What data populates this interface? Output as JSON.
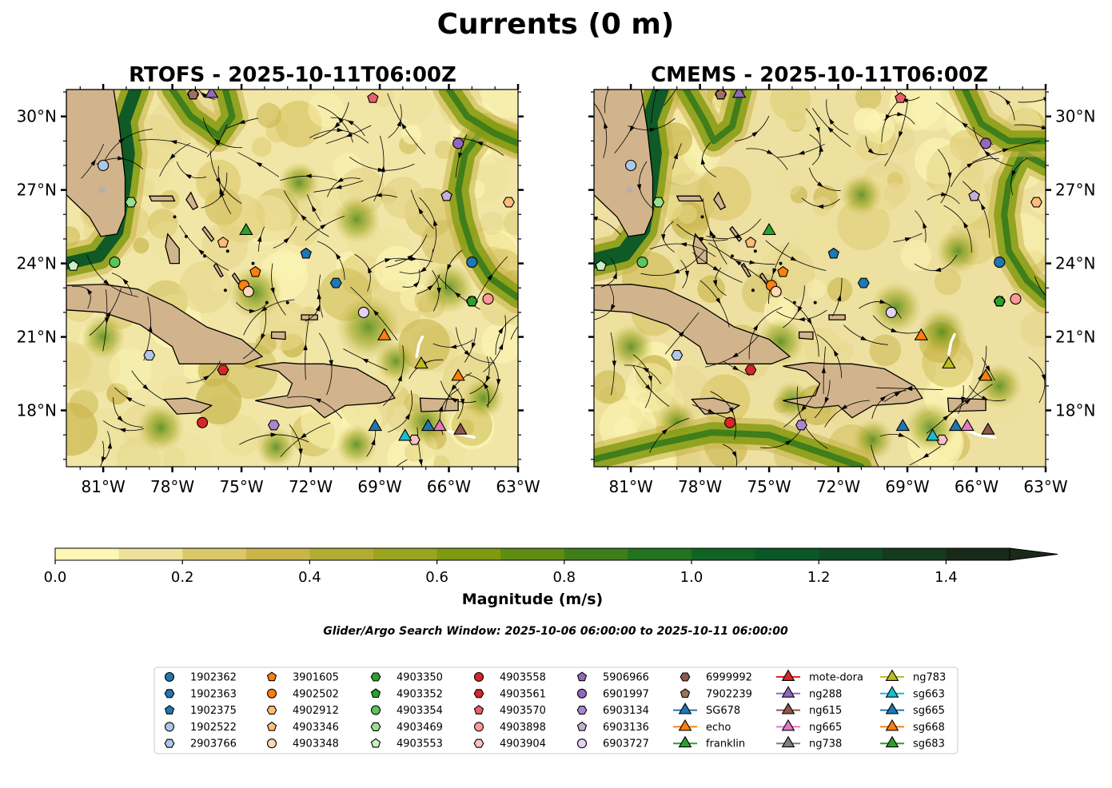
{
  "figure": {
    "title": "Currents (0 m)",
    "search_window": "Glider/Argo Search Window: 2025-10-06 06:00:00 to 2025-10-11 06:00:00"
  },
  "panels": [
    {
      "title": "RTOFS - 2025-10-11T06:00Z",
      "lat_tick_side": "left",
      "variant": 0
    },
    {
      "title": "CMEMS - 2025-10-11T06:00Z",
      "lat_tick_side": "right",
      "variant": 1
    }
  ],
  "chart_data": {
    "type": "heatmap",
    "map_extent": {
      "lon": [
        -82.6,
        -63.0
      ],
      "lat": [
        15.7,
        31.1
      ]
    },
    "lon_ticks": [
      {
        "value": -81,
        "label": "81°W"
      },
      {
        "value": -78,
        "label": "78°W"
      },
      {
        "value": -75,
        "label": "75°W"
      },
      {
        "value": -72,
        "label": "72°W"
      },
      {
        "value": -69,
        "label": "69°W"
      },
      {
        "value": -66,
        "label": "66°W"
      },
      {
        "value": -63,
        "label": "63°W"
      }
    ],
    "lat_ticks": [
      {
        "value": 18,
        "label": "18°N"
      },
      {
        "value": 21,
        "label": "21°N"
      },
      {
        "value": 24,
        "label": "24°N"
      },
      {
        "value": 27,
        "label": "27°N"
      },
      {
        "value": 30,
        "label": "30°N"
      }
    ],
    "colorbar": {
      "label": "Magnitude (m/s)",
      "range": [
        0.0,
        1.5
      ],
      "extend": "max",
      "ticks": [
        {
          "value": 0.0,
          "label": "0.0"
        },
        {
          "value": 0.2,
          "label": "0.2"
        },
        {
          "value": 0.4,
          "label": "0.4"
        },
        {
          "value": 0.6,
          "label": "0.6"
        },
        {
          "value": 0.8,
          "label": "0.8"
        },
        {
          "value": 1.0,
          "label": "1.0"
        },
        {
          "value": 1.2,
          "label": "1.2"
        },
        {
          "value": 1.4,
          "label": "1.4"
        }
      ],
      "colors": [
        "#fdf6b5",
        "#ede19b",
        "#dbc86b",
        "#c9b54a",
        "#b3ac34",
        "#9aa41e",
        "#7f9a0e",
        "#5f8c12",
        "#3f7e1a",
        "#22721f",
        "#0f6424",
        "#0b5728",
        "#0f4a25",
        "#153a1e",
        "#1a2a18"
      ]
    },
    "series": [
      {
        "name": "1902362",
        "marker": "circle",
        "color": "#1f77b4",
        "positions": [
          {
            "lon": -65.0,
            "lat": 24.05
          },
          {
            "lon": -65.0,
            "lat": 24.05
          }
        ]
      },
      {
        "name": "1902363",
        "marker": "hexagon",
        "color": "#1f77b4",
        "positions": [
          {
            "lon": -70.9,
            "lat": 23.2
          },
          {
            "lon": -70.9,
            "lat": 23.2
          }
        ]
      },
      {
        "name": "1902375",
        "marker": "pentagon",
        "color": "#1f77b4",
        "positions": [
          {
            "lon": -72.2,
            "lat": 24.4
          },
          {
            "lon": -72.2,
            "lat": 24.4
          }
        ]
      },
      {
        "name": "1902522",
        "marker": "circle",
        "color": "#aec7e8",
        "positions": [
          {
            "lon": -81.0,
            "lat": 28.0
          },
          {
            "lon": -81.0,
            "lat": 28.0
          }
        ]
      },
      {
        "name": "2903766",
        "marker": "hexagon",
        "color": "#aec7e8",
        "positions": [
          {
            "lon": -79.0,
            "lat": 20.25
          },
          {
            "lon": -79.0,
            "lat": 20.25
          }
        ]
      },
      {
        "name": "3901605",
        "marker": "pentagon",
        "color": "#ff7f0e",
        "positions": [
          {
            "lon": -74.4,
            "lat": 23.65
          },
          {
            "lon": -74.4,
            "lat": 23.65
          }
        ]
      },
      {
        "name": "4902502",
        "marker": "circle",
        "color": "#ff7f0e",
        "positions": [
          {
            "lon": -74.9,
            "lat": 23.1
          },
          {
            "lon": -74.9,
            "lat": 23.1
          }
        ]
      },
      {
        "name": "4902912",
        "marker": "hexagon",
        "color": "#ffbb78",
        "positions": [
          {
            "lon": -63.4,
            "lat": 26.5
          },
          {
            "lon": -63.4,
            "lat": 26.5
          }
        ]
      },
      {
        "name": "4903346",
        "marker": "pentagon",
        "color": "#ffbb78",
        "positions": [
          {
            "lon": -75.8,
            "lat": 24.85
          },
          {
            "lon": -75.8,
            "lat": 24.85
          }
        ]
      },
      {
        "name": "4903348",
        "marker": "circle",
        "color": "#ffd8b5",
        "positions": [
          {
            "lon": -74.7,
            "lat": 22.85
          },
          {
            "lon": -74.7,
            "lat": 22.85
          }
        ]
      },
      {
        "name": "4903350",
        "marker": "hexagon",
        "color": "#2ca02c",
        "positions": [
          {
            "lon": -65.0,
            "lat": 22.45
          },
          {
            "lon": -65.0,
            "lat": 22.45
          }
        ]
      },
      {
        "name": "4903352",
        "marker": "pentagon",
        "color": "#2ca02c",
        "positions": [
          {
            "lon": -65.0,
            "lat": 22.45
          },
          {
            "lon": -65.0,
            "lat": 22.45
          }
        ]
      },
      {
        "name": "4903354",
        "marker": "circle",
        "color": "#5cc45c",
        "positions": [
          {
            "lon": -80.5,
            "lat": 24.05
          },
          {
            "lon": -80.5,
            "lat": 24.05
          }
        ]
      },
      {
        "name": "4903469",
        "marker": "hexagon",
        "color": "#98df8a",
        "positions": [
          {
            "lon": -79.8,
            "lat": 26.5
          },
          {
            "lon": -79.8,
            "lat": 26.5
          }
        ]
      },
      {
        "name": "4903553",
        "marker": "pentagon",
        "color": "#c8f0c0",
        "positions": [
          {
            "lon": -82.3,
            "lat": 23.9
          },
          {
            "lon": -82.3,
            "lat": 23.9
          }
        ]
      },
      {
        "name": "4903558",
        "marker": "circle",
        "color": "#d62728",
        "positions": [
          {
            "lon": -76.7,
            "lat": 17.5
          },
          {
            "lon": -76.7,
            "lat": 17.5
          }
        ]
      },
      {
        "name": "4903561",
        "marker": "hexagon",
        "color": "#d62728",
        "positions": [
          {
            "lon": -75.8,
            "lat": 19.65
          },
          {
            "lon": -75.8,
            "lat": 19.65
          }
        ]
      },
      {
        "name": "4903570",
        "marker": "pentagon",
        "color": "#e8606a",
        "positions": [
          {
            "lon": -69.3,
            "lat": 30.75
          },
          {
            "lon": -69.3,
            "lat": 30.75
          }
        ]
      },
      {
        "name": "4903898",
        "marker": "circle",
        "color": "#ff9896",
        "positions": [
          {
            "lon": -64.3,
            "lat": 22.55
          },
          {
            "lon": -64.3,
            "lat": 22.55
          }
        ]
      },
      {
        "name": "4903904",
        "marker": "hexagon",
        "color": "#ffc0c0",
        "positions": [
          {
            "lon": -67.5,
            "lat": 16.8
          },
          {
            "lon": -67.5,
            "lat": 16.8
          }
        ]
      },
      {
        "name": "5906966",
        "marker": "pentagon",
        "color": "#9467bd",
        "positions": [
          {
            "lon": -66.1,
            "lat": 26.75
          },
          {
            "lon": -66.1,
            "lat": 26.75
          }
        ]
      },
      {
        "name": "6901997",
        "marker": "circle",
        "color": "#9467bd",
        "positions": [
          {
            "lon": -65.6,
            "lat": 28.9
          },
          {
            "lon": -65.6,
            "lat": 28.9
          }
        ]
      },
      {
        "name": "6903134",
        "marker": "hexagon",
        "color": "#a987d0",
        "positions": [
          {
            "lon": -73.6,
            "lat": 17.4
          },
          {
            "lon": -73.6,
            "lat": 17.4
          }
        ]
      },
      {
        "name": "6903136",
        "marker": "pentagon",
        "color": "#c5b0d5",
        "positions": [
          {
            "lon": -66.1,
            "lat": 26.75
          },
          {
            "lon": -66.1,
            "lat": 26.75
          }
        ]
      },
      {
        "name": "6903727",
        "marker": "circle",
        "color": "#e4d2f5",
        "positions": [
          {
            "lon": -69.7,
            "lat": 22.0
          },
          {
            "lon": -69.7,
            "lat": 22.0
          }
        ]
      },
      {
        "name": "6999992",
        "marker": "hexagon",
        "color": "#8c564b",
        "positions": [
          {
            "lon": -77.1,
            "lat": 30.9
          },
          {
            "lon": -77.1,
            "lat": 30.9
          }
        ]
      },
      {
        "name": "7902239",
        "marker": "pentagon",
        "color": "#a0705f",
        "positions": [
          {
            "lon": -77.1,
            "lat": 30.9
          },
          {
            "lon": -77.1,
            "lat": 30.9
          }
        ]
      },
      {
        "name": "SG678",
        "marker": "triangle",
        "color": "#1f77b4",
        "positions": [
          {
            "lon": -69.2,
            "lat": 17.4
          },
          {
            "lon": -69.2,
            "lat": 17.4
          }
        ]
      },
      {
        "name": "echo",
        "marker": "triangle",
        "color": "#ff7f0e",
        "positions": [
          {
            "lon": -68.8,
            "lat": 21.1
          },
          {
            "lon": -68.4,
            "lat": 21.1
          }
        ]
      },
      {
        "name": "franklin",
        "marker": "triangle",
        "color": "#2ca02c",
        "positions": [
          {
            "lon": -74.8,
            "lat": 25.4
          },
          {
            "lon": -75.0,
            "lat": 25.4
          }
        ]
      },
      {
        "name": "mote-dora",
        "marker": "triangle",
        "color": "#d62728",
        "positions": []
      },
      {
        "name": "ng288",
        "marker": "triangle",
        "color": "#9467bd",
        "positions": [
          {
            "lon": -76.3,
            "lat": 31.0
          },
          {
            "lon": -76.3,
            "lat": 31.0
          }
        ]
      },
      {
        "name": "ng615",
        "marker": "triangle",
        "color": "#8c564b",
        "positions": [
          {
            "lon": -65.5,
            "lat": 17.25
          },
          {
            "lon": -65.5,
            "lat": 17.25
          }
        ]
      },
      {
        "name": "ng665",
        "marker": "triangle",
        "color": "#e377c2",
        "positions": [
          {
            "lon": -66.4,
            "lat": 17.4
          },
          {
            "lon": -66.4,
            "lat": 17.4
          }
        ]
      },
      {
        "name": "ng738",
        "marker": "triangle",
        "color": "#7f7f7f",
        "positions": []
      },
      {
        "name": "ng783",
        "marker": "triangle",
        "color": "#bcbd22",
        "positions": [
          {
            "lon": -67.2,
            "lat": 19.95
          },
          {
            "lon": -67.2,
            "lat": 19.95
          }
        ]
      },
      {
        "name": "sg663",
        "marker": "triangle",
        "color": "#17becf",
        "positions": [
          {
            "lon": -67.9,
            "lat": 17.0
          },
          {
            "lon": -67.9,
            "lat": 17.0
          }
        ]
      },
      {
        "name": "sg665",
        "marker": "triangle",
        "color": "#1f77b4",
        "positions": [
          {
            "lon": -66.9,
            "lat": 17.4
          },
          {
            "lon": -66.9,
            "lat": 17.4
          }
        ]
      },
      {
        "name": "sg668",
        "marker": "triangle",
        "color": "#ff7f0e",
        "positions": [
          {
            "lon": -65.6,
            "lat": 19.45
          },
          {
            "lon": -65.6,
            "lat": 19.45
          }
        ]
      },
      {
        "name": "sg683",
        "marker": "triangle",
        "color": "#2ca02c",
        "positions": []
      }
    ]
  }
}
